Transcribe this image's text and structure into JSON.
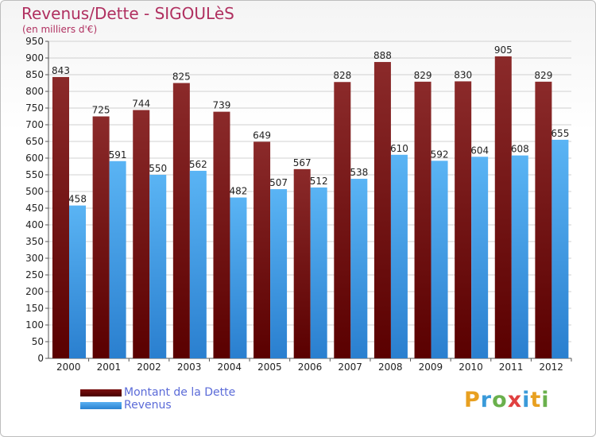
{
  "chart_data": {
    "type": "bar",
    "title": "Revenus/Dette - SIGOULèS",
    "subtitle": "(en milliers d'€)",
    "categories": [
      "2000",
      "2001",
      "2002",
      "2003",
      "2004",
      "2005",
      "2006",
      "2007",
      "2008",
      "2009",
      "2010",
      "2011",
      "2012"
    ],
    "series": [
      {
        "name": "Montant de la Dette",
        "values": [
          843,
          725,
          744,
          825,
          739,
          649,
          567,
          828,
          888,
          829,
          830,
          905,
          829
        ]
      },
      {
        "name": "Revenus",
        "values": [
          458,
          591,
          550,
          562,
          482,
          507,
          512,
          538,
          610,
          592,
          604,
          608,
          655
        ]
      }
    ],
    "ylim": [
      0,
      950
    ],
    "yticks": [
      "0",
      "50",
      "100",
      "150",
      "200",
      "250",
      "300",
      "350",
      "400",
      "450",
      "500",
      "550",
      "600",
      "650",
      "700",
      "750",
      "800",
      "850",
      "900",
      "950"
    ],
    "grid": true,
    "legend_position": "bottom-left"
  },
  "colors": {
    "title": "#b03060",
    "debt_top": "#8b2a2a",
    "debt_bottom": "#5a0000",
    "revenue_top": "#5ab4f4",
    "revenue_bottom": "#2a7fcf",
    "grid": "#d0d0d0",
    "legend_text": "#5b6bd8"
  },
  "logo": {
    "letters": [
      "P",
      "r",
      "o",
      "x",
      "i",
      "t",
      "i"
    ],
    "letter_colors": [
      "#e8a020",
      "#3a9ad9",
      "#6ab04c",
      "#e04040",
      "#3a9ad9",
      "#e8a020",
      "#6ab04c"
    ]
  }
}
